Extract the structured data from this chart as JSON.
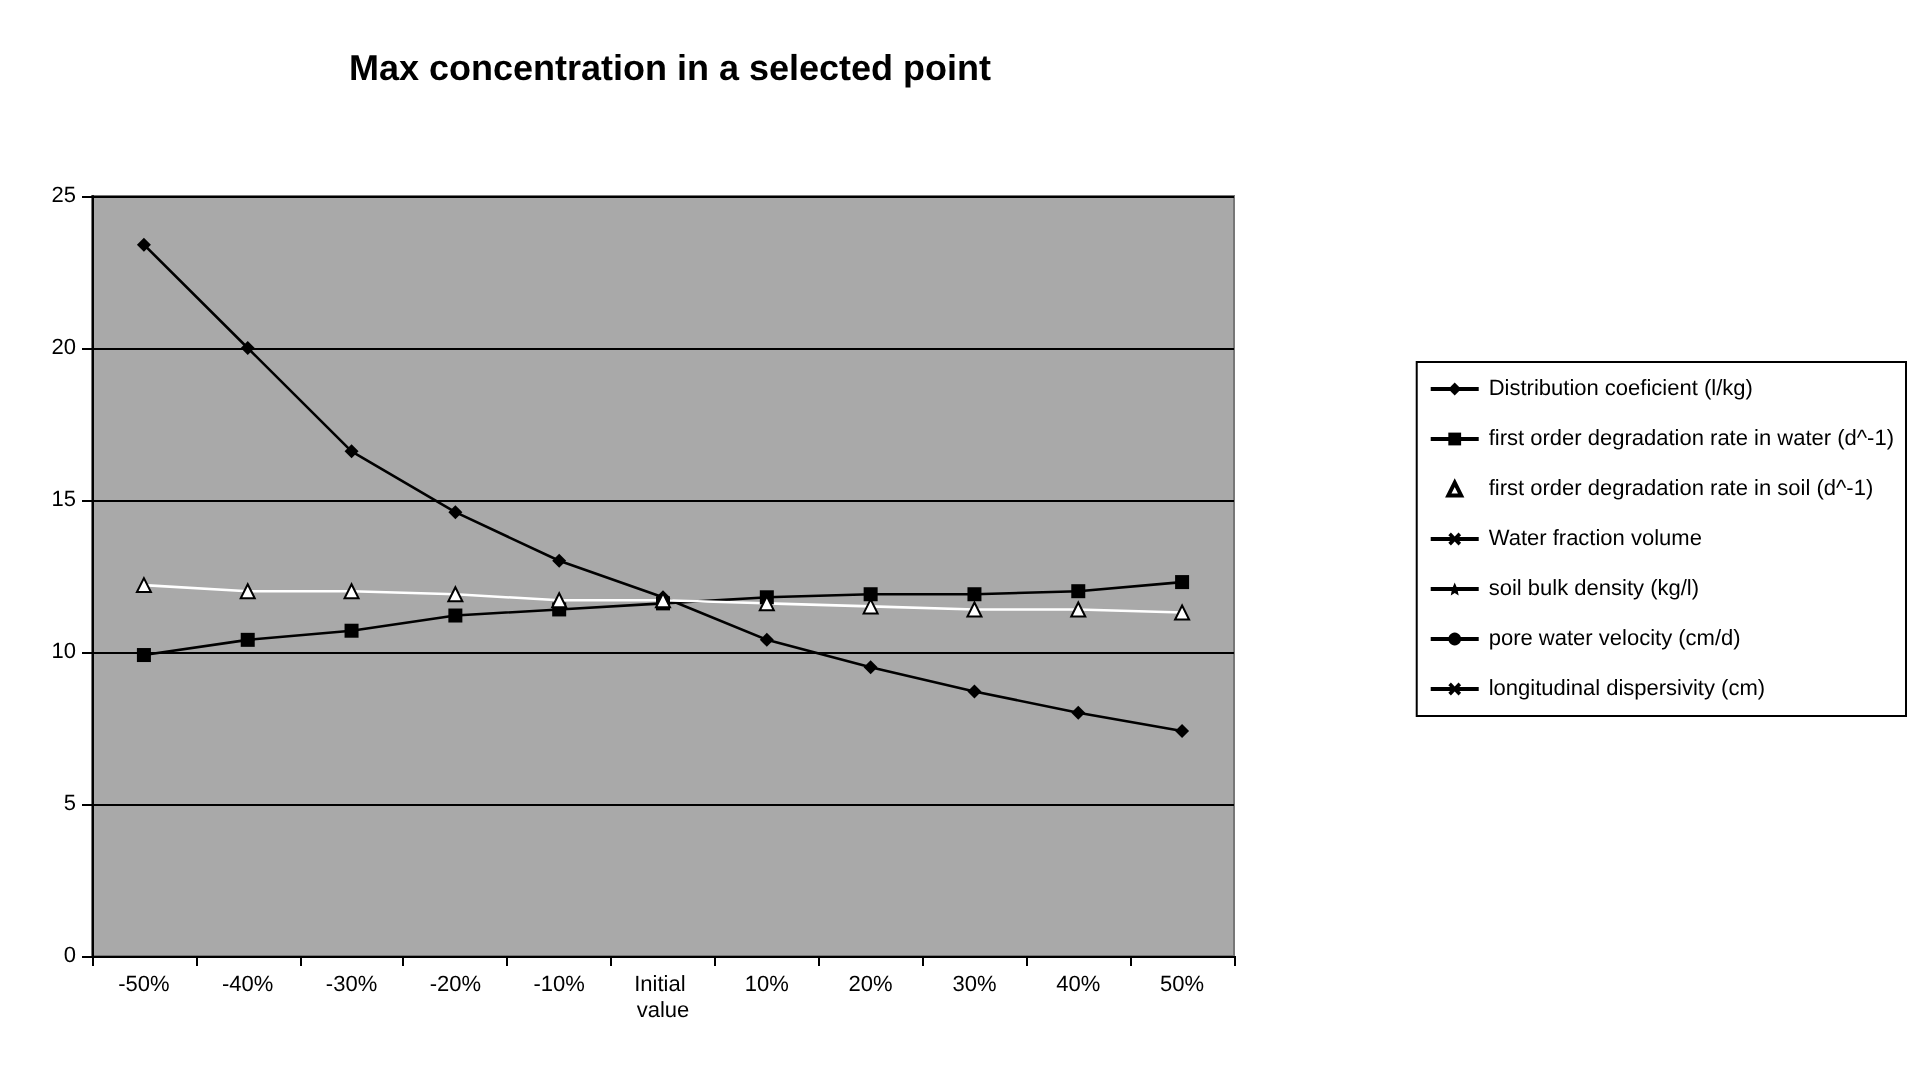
{
  "chart_data": {
    "type": "line",
    "title": "Max concentration in a selected point",
    "categories": [
      "-50%",
      "-40%",
      "-30%",
      "-20%",
      "-10%",
      "Initial value",
      "10%",
      "20%",
      "30%",
      "40%",
      "50%"
    ],
    "ylim": [
      0,
      25
    ],
    "yticks": [
      0,
      5,
      10,
      15,
      20,
      25
    ],
    "grid": "y",
    "legend": "right",
    "line_style": "solid",
    "series": [
      {
        "name": "Distribution coeficient (l/kg)",
        "color": "#000000",
        "marker": "diamond",
        "values": [
          23.4,
          20,
          16.6,
          14.6,
          13,
          11.8,
          10.4,
          9.5,
          8.7,
          8.0,
          7.4
        ]
      },
      {
        "name": "first order degradation rate in water (d^-1)",
        "color": "#000000",
        "marker": "square",
        "values": [
          9.9,
          10.4,
          10.7,
          11.2,
          11.4,
          11.6,
          11.8,
          11.9,
          11.9,
          12.0,
          12.3
        ]
      },
      {
        "name": "first order degradation rate in soil (d^-1)",
        "color": "#ffffff",
        "marker": "triangle",
        "values": [
          12.2,
          12.0,
          12.0,
          11.9,
          11.7,
          11.7,
          11.6,
          11.5,
          11.4,
          11.4,
          11.3
        ]
      },
      {
        "name": "Water fraction volume",
        "color": "#000000",
        "marker": "cross",
        "values": [
          null,
          null,
          null,
          null,
          null,
          null,
          null,
          null,
          null,
          null,
          null
        ]
      },
      {
        "name": "soil bulk density (kg/l)",
        "color": "#000000",
        "marker": "star",
        "values": [
          null,
          null,
          null,
          null,
          null,
          null,
          null,
          null,
          null,
          null,
          null
        ]
      },
      {
        "name": "pore water velocity (cm/d)",
        "color": "#000000",
        "marker": "circle",
        "values": [
          null,
          null,
          null,
          null,
          null,
          null,
          null,
          null,
          null,
          null,
          null
        ]
      },
      {
        "name": "longitudinal dispersivity (cm)",
        "color": "#000000",
        "marker": "cross",
        "values": [
          null,
          null,
          null,
          null,
          null,
          null,
          null,
          null,
          null,
          null,
          null
        ]
      }
    ]
  }
}
